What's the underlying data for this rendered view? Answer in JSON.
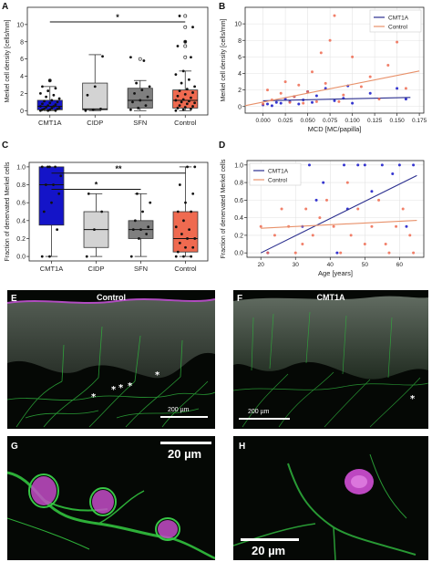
{
  "panels": {
    "A": "A",
    "B": "B",
    "C": "C",
    "D": "D",
    "E": "E",
    "F": "F",
    "G": "G",
    "H": "H"
  },
  "colors": {
    "cmt1a": "#1414c8",
    "cidp": "#d3d3d3",
    "sfn": "#7f7f7f",
    "control": "#ef6a50",
    "line_cmt1a": "#2b2f8f",
    "line_control": "#e8916a",
    "micro_green": "#2bbf3a",
    "micro_magenta": "#d24fd6"
  },
  "chart_data": [
    {
      "id": "A",
      "type": "box",
      "ylabel": "Merkel cell density [cells/mm]",
      "ylim": [
        -0.5,
        12
      ],
      "yticks": [
        "0",
        "2",
        "4",
        "6",
        "8",
        "10"
      ],
      "categories": [
        "CMT1A",
        "CIDP",
        "SFN",
        "Control"
      ],
      "boxes": [
        {
          "name": "CMT1A",
          "min": 0,
          "q1": 0.1,
          "median": 0.5,
          "q3": 1.2,
          "max": 2.8,
          "outliers": [
            3.5
          ]
        },
        {
          "name": "CIDP",
          "min": 0,
          "q1": 0.1,
          "median": 0.2,
          "q3": 3.2,
          "max": 6.5,
          "outliers": []
        },
        {
          "name": "SFN",
          "min": 0,
          "q1": 0.3,
          "median": 1.2,
          "q3": 2.6,
          "max": 3.5,
          "outliers": [
            6.0
          ]
        },
        {
          "name": "Control",
          "min": 0,
          "q1": 0.3,
          "median": 1.2,
          "q3": 2.4,
          "max": 4.6,
          "outliers": [
            6.2,
            7.5,
            8.0,
            9.7,
            11.0
          ]
        }
      ],
      "points": {
        "CMT1A": [
          0,
          0,
          0,
          0.1,
          0.1,
          0.2,
          0.2,
          0.3,
          0.3,
          0.4,
          0.5,
          0.5,
          0.6,
          0.7,
          0.8,
          0.9,
          1.0,
          1.1,
          1.2,
          1.4,
          1.6,
          1.8,
          2.0,
          2.3,
          2.6,
          2.8,
          3.5
        ],
        "CIDP": [
          0,
          0.1,
          0.2,
          1.8,
          2.8,
          6.3
        ],
        "SFN": [
          0.1,
          0.3,
          0.6,
          1.0,
          1.2,
          1.6,
          2.0,
          2.4,
          2.8,
          3.2,
          5.8,
          6.2
        ],
        "Control": [
          0,
          0.1,
          0.2,
          0.3,
          0.4,
          0.5,
          0.6,
          0.8,
          0.9,
          1.0,
          1.1,
          1.2,
          1.3,
          1.5,
          1.7,
          1.9,
          2.1,
          2.3,
          2.5,
          2.8,
          3.2,
          3.6,
          4.2,
          4.6,
          6.2,
          7.5,
          8.0,
          9.7,
          11.0
        ]
      },
      "significance": [
        {
          "from": "CMT1A",
          "to": "Control",
          "y": 10.3,
          "label": "*"
        }
      ]
    },
    {
      "id": "B",
      "type": "scatter",
      "xlabel": "MCD [MC/papilla]",
      "ylabel": "Merkel cell density [cells/mm]",
      "xlim": [
        -0.02,
        0.18
      ],
      "ylim": [
        -0.8,
        12
      ],
      "xticks": [
        "0.000",
        "0.025",
        "0.050",
        "0.075",
        "0.100",
        "0.125",
        "0.150",
        "0.175"
      ],
      "yticks": [
        "0",
        "2",
        "4",
        "6",
        "8",
        "10"
      ],
      "legend": "top-right",
      "series": [
        {
          "name": "CMT1A",
          "x": [
            0.0,
            0.005,
            0.01,
            0.015,
            0.02,
            0.025,
            0.03,
            0.035,
            0.04,
            0.045,
            0.05,
            0.055,
            0.06,
            0.07,
            0.08,
            0.09,
            0.095,
            0.1,
            0.12,
            0.15,
            0.16
          ],
          "y": [
            0.2,
            0.3,
            0.1,
            0.5,
            0.4,
            0.9,
            0.6,
            1.2,
            0.3,
            0.8,
            1.8,
            0.5,
            1.3,
            2.2,
            0.7,
            1.0,
            2.5,
            0.4,
            1.6,
            2.2,
            0.9
          ],
          "fit": [
            [
              0.0,
              0.7
            ],
            [
              0.165,
              1.1
            ]
          ]
        },
        {
          "name": "Control",
          "x": [
            0.0,
            0.005,
            0.01,
            0.02,
            0.025,
            0.03,
            0.035,
            0.04,
            0.045,
            0.05,
            0.055,
            0.06,
            0.065,
            0.07,
            0.075,
            0.08,
            0.085,
            0.09,
            0.1,
            0.11,
            0.12,
            0.13,
            0.14,
            0.15,
            0.16
          ],
          "y": [
            0.3,
            2.0,
            0.8,
            1.6,
            3.0,
            0.5,
            1.2,
            2.6,
            0.4,
            1.8,
            4.2,
            0.6,
            6.5,
            2.8,
            8.0,
            11.0,
            0.6,
            1.4,
            6.0,
            2.4,
            3.6,
            0.9,
            5.0,
            7.8,
            2.2
          ],
          "fit": [
            [
              -0.02,
              0.1
            ],
            [
              0.175,
              4.3
            ]
          ]
        }
      ]
    },
    {
      "id": "C",
      "type": "box",
      "ylabel": "Fraction of denervated Merkel cells",
      "ylim": [
        -0.05,
        1.05
      ],
      "yticks": [
        "0.0",
        "0.2",
        "0.4",
        "0.6",
        "0.8",
        "1.0"
      ],
      "categories": [
        "CMT1A",
        "CIDP",
        "SFN",
        "Control"
      ],
      "boxes": [
        {
          "name": "CMT1A",
          "min": 0,
          "q1": 0.35,
          "median": 0.8,
          "q3": 1.0,
          "max": 1.0,
          "outliers": []
        },
        {
          "name": "CIDP",
          "min": 0,
          "q1": 0.1,
          "median": 0.3,
          "q3": 0.5,
          "max": 0.7,
          "outliers": []
        },
        {
          "name": "SFN",
          "min": 0,
          "q1": 0.2,
          "median": 0.3,
          "q3": 0.4,
          "max": 0.7,
          "outliers": []
        },
        {
          "name": "Control",
          "min": 0,
          "q1": 0.05,
          "median": 0.2,
          "q3": 0.5,
          "max": 1.0,
          "outliers": []
        }
      ],
      "points": {
        "CMT1A": [
          0,
          0,
          0.3,
          0.5,
          0.6,
          0.7,
          0.8,
          0.8,
          0.9,
          1.0,
          1.0,
          1.0,
          1.0
        ],
        "CIDP": [
          0,
          0.3,
          0.5,
          0.7
        ],
        "SFN": [
          0,
          0.2,
          0.25,
          0.3,
          0.3,
          0.33,
          0.4,
          0.5,
          0.6,
          0.7
        ],
        "Control": [
          0,
          0,
          0,
          0.05,
          0.1,
          0.1,
          0.15,
          0.2,
          0.2,
          0.25,
          0.3,
          0.33,
          0.4,
          0.5,
          0.5,
          0.6,
          0.7,
          0.8,
          1.0,
          1.0
        ]
      },
      "significance": [
        {
          "from": "CMT1A",
          "to": "Control",
          "y": 0.93,
          "label": "**"
        },
        {
          "from": "CMT1A",
          "to": "SFN",
          "y": 0.75,
          "label": "*"
        }
      ]
    },
    {
      "id": "D",
      "type": "scatter",
      "xlabel": "Age [years]",
      "ylabel": "Fraction of denervated Merkel cells",
      "xlim": [
        16,
        67
      ],
      "ylim": [
        -0.05,
        1.05
      ],
      "xticks": [
        "20",
        "30",
        "40",
        "50",
        "60"
      ],
      "yticks": [
        "0.0",
        "0.2",
        "0.4",
        "0.6",
        "0.8",
        "1.0"
      ],
      "legend": "top-left",
      "series": [
        {
          "name": "CMT1A",
          "x": [
            22,
            28,
            32,
            34,
            36,
            38,
            42,
            44,
            45,
            48,
            50,
            52,
            55,
            58,
            60,
            62,
            64
          ],
          "y": [
            0.0,
            1.0,
            0.3,
            1.0,
            0.6,
            0.8,
            0.0,
            1.0,
            0.5,
            1.0,
            1.0,
            0.7,
            1.0,
            0.9,
            1.0,
            0.3,
            1.0
          ],
          "fit": [
            [
              20,
              0.0
            ],
            [
              65,
              0.88
            ]
          ]
        },
        {
          "name": "Control",
          "x": [
            20,
            22,
            24,
            26,
            28,
            30,
            32,
            33,
            35,
            37,
            39,
            41,
            43,
            45,
            46,
            48,
            50,
            52,
            54,
            56,
            57,
            59,
            61,
            63,
            64
          ],
          "y": [
            0.3,
            0.0,
            0.2,
            0.5,
            0.3,
            0.0,
            0.1,
            0.5,
            0.2,
            0.4,
            0.6,
            0.3,
            0.0,
            0.8,
            0.2,
            0.5,
            0.1,
            0.3,
            0.6,
            0.1,
            0.0,
            0.3,
            0.5,
            0.2,
            0.0
          ],
          "fit": [
            [
              20,
              0.28
            ],
            [
              65,
              0.37
            ]
          ]
        }
      ]
    }
  ],
  "micro": {
    "E": {
      "title": "Control",
      "scale": "200 µm",
      "stars": [
        "*",
        "*",
        "*",
        "*",
        "*"
      ]
    },
    "F": {
      "title": "CMT1A",
      "scale": "200 µm",
      "stars": [
        "*"
      ]
    },
    "G": {
      "scale": "20 µm"
    },
    "H": {
      "scale": "20 µm"
    }
  }
}
